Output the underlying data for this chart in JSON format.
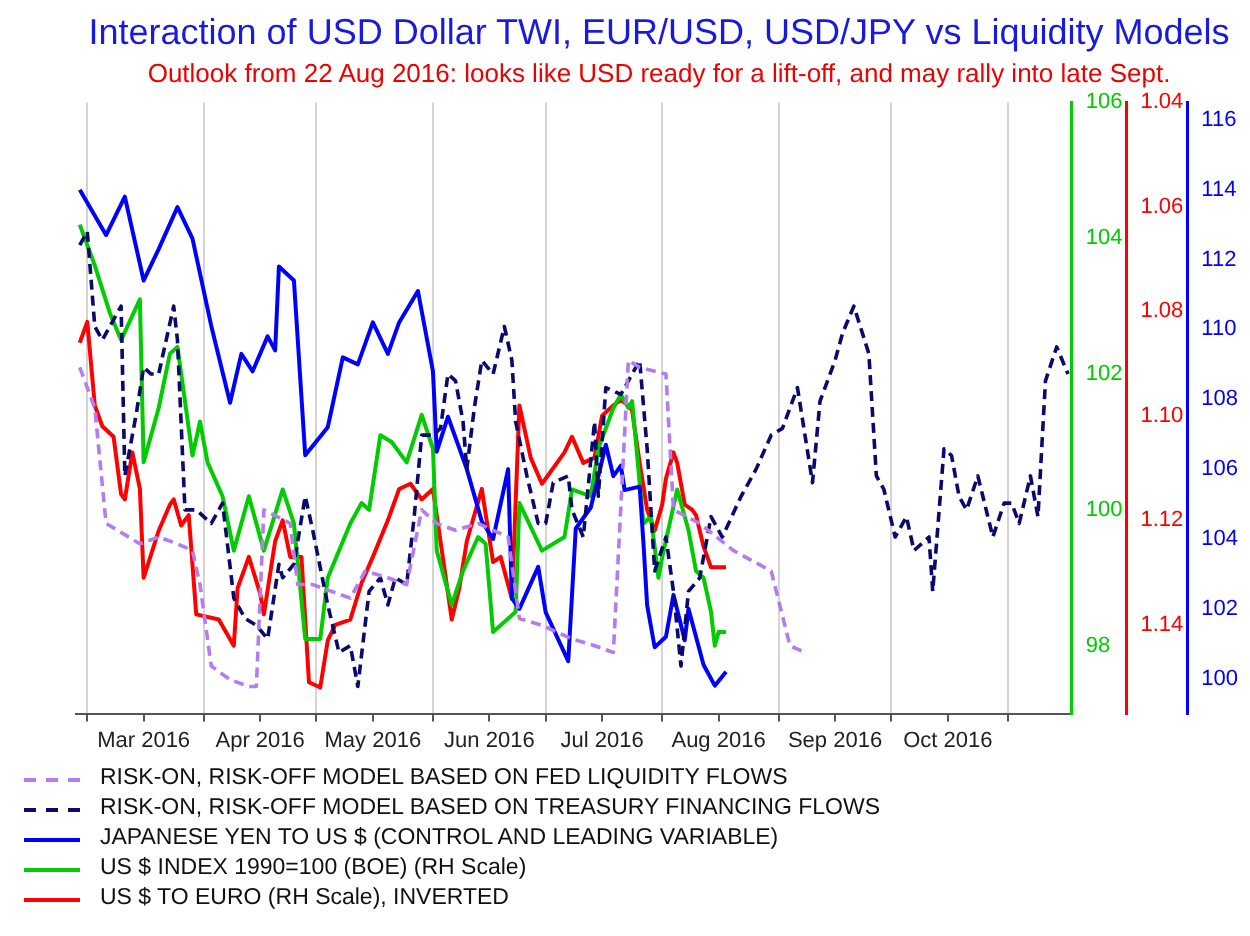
{
  "chart_data": {
    "type": "line",
    "title": "Interaction of USD Dollar TWI, EUR/USD, USD/JPY vs Liquidity Models",
    "subtitle": "Outlook from 22 Aug 2016: looks like USD ready for a lift-off, and may rally into late Sept.",
    "xlim": [
      "2016-02-27",
      "2016-11-18"
    ],
    "xticks": [
      {
        "value": "2016-03-01",
        "label": null
      },
      {
        "value": "2016-03-16",
        "label": "Mar 2016"
      },
      {
        "value": "2016-04-01",
        "label": null
      },
      {
        "value": "2016-04-16",
        "label": "Apr 2016"
      },
      {
        "value": "2016-05-01",
        "label": null
      },
      {
        "value": "2016-05-16",
        "label": "May 2016"
      },
      {
        "value": "2016-06-01",
        "label": null
      },
      {
        "value": "2016-06-16",
        "label": "Jun 2016"
      },
      {
        "value": "2016-07-01",
        "label": null
      },
      {
        "value": "2016-07-16",
        "label": "Jul 2016"
      },
      {
        "value": "2016-08-01",
        "label": null
      },
      {
        "value": "2016-08-16",
        "label": "Aug 2016"
      },
      {
        "value": "2016-09-01",
        "label": null
      },
      {
        "value": "2016-09-16",
        "label": "Sep 2016"
      },
      {
        "value": "2016-10-01",
        "label": null
      },
      {
        "value": "2016-10-16",
        "label": "Oct 2016"
      },
      {
        "value": "2016-11-01",
        "label": null
      }
    ],
    "ylim": [
      97,
      106
    ],
    "yticks": [
      98,
      100,
      102,
      104,
      106
    ],
    "y2lim": [
      1.157,
      1.04
    ],
    "y2ticks": [
      1.04,
      1.06,
      1.08,
      {
        "value": 1.1,
        "label": "1.10"
      },
      1.12,
      1.14
    ],
    "y3lim": [
      99,
      116.5
    ],
    "y3ticks": [
      100,
      102,
      104,
      106,
      108,
      110,
      112,
      114,
      116
    ],
    "grid": "x",
    "legend": "bottom left",
    "marker": "none",
    "series": [
      {
        "name": "RISK-ON, RISK-OFF MODEL BASED ON FED LIQUIDITY FLOWS",
        "color": "#b57cf0",
        "line_style": "dashed",
        "x": [
          "2016-02-28",
          "2016-03-03",
          "2016-03-06",
          "2016-03-15",
          "2016-03-20",
          "2016-03-25",
          "2016-03-29",
          "2016-03-31",
          "2016-04-03",
          "2016-04-08",
          "2016-04-13",
          "2016-04-15",
          "2016-04-17",
          "2016-04-24",
          "2016-04-26",
          "2016-04-30",
          "2016-05-05",
          "2016-05-10",
          "2016-05-14",
          "2016-05-20",
          "2016-05-25",
          "2016-05-29",
          "2016-06-02",
          "2016-06-07",
          "2016-06-13",
          "2016-06-21",
          "2016-06-24",
          "2016-06-30",
          "2016-07-08",
          "2016-07-14",
          "2016-07-19",
          "2016-07-23",
          "2016-07-26",
          "2016-08-02",
          "2016-08-04",
          "2016-08-11",
          "2016-08-20",
          "2016-08-30",
          "2016-09-04",
          "2016-09-08"
        ],
        "values": [
          102.1,
          101.5,
          99.8,
          99.5,
          99.6,
          99.5,
          99.4,
          98.9,
          97.7,
          97.5,
          97.4,
          97.4,
          100.0,
          99.8,
          98.9,
          98.9,
          98.8,
          98.7,
          99.1,
          99.0,
          98.9,
          100.0,
          99.8,
          99.7,
          99.8,
          99.6,
          98.4,
          98.3,
          98.1,
          98.0,
          97.9,
          102.2,
          102.1,
          102.0,
          100.0,
          99.8,
          99.4,
          99.1,
          98.0,
          97.9
        ]
      },
      {
        "name": "RISK-ON, RISK-OFF MODEL BASED ON TREASURY FINANCING FLOWS",
        "color": "#0a0a6e",
        "line_style": "dashed",
        "x": [
          "2016-02-28",
          "2016-03-01",
          "2016-03-03",
          "2016-03-05",
          "2016-03-07",
          "2016-03-10",
          "2016-03-11",
          "2016-03-14",
          "2016-03-16",
          "2016-03-18",
          "2016-03-20",
          "2016-03-24",
          "2016-03-25",
          "2016-03-27",
          "2016-03-30",
          "2016-04-03",
          "2016-04-06",
          "2016-04-09",
          "2016-04-12",
          "2016-04-15",
          "2016-04-18",
          "2016-04-21",
          "2016-04-22",
          "2016-04-25",
          "2016-04-28",
          "2016-04-30",
          "2016-05-04",
          "2016-05-07",
          "2016-05-10",
          "2016-05-12",
          "2016-05-15",
          "2016-05-18",
          "2016-05-20",
          "2016-05-22",
          "2016-05-25",
          "2016-05-27",
          "2016-05-29",
          "2016-06-01",
          "2016-06-03",
          "2016-06-05",
          "2016-06-07",
          "2016-06-09",
          "2016-06-10",
          "2016-06-12",
          "2016-06-14",
          "2016-06-17",
          "2016-06-20",
          "2016-06-22",
          "2016-06-23",
          "2016-06-26",
          "2016-06-29",
          "2016-07-01",
          "2016-07-03",
          "2016-07-07",
          "2016-07-08",
          "2016-07-11",
          "2016-07-14",
          "2016-07-15",
          "2016-07-17",
          "2016-07-21",
          "2016-07-26",
          "2016-07-28",
          "2016-07-30",
          "2016-08-02",
          "2016-08-04",
          "2016-08-06",
          "2016-08-08",
          "2016-08-11",
          "2016-08-14",
          "2016-08-17",
          "2016-08-22",
          "2016-08-26",
          "2016-08-30",
          "2016-09-02",
          "2016-09-06",
          "2016-09-10",
          "2016-09-12",
          "2016-09-16",
          "2016-09-18",
          "2016-09-21",
          "2016-09-25",
          "2016-09-27",
          "2016-09-29",
          "2016-10-02",
          "2016-10-05",
          "2016-10-07",
          "2016-10-11",
          "2016-10-12",
          "2016-10-15",
          "2016-10-17",
          "2016-10-19",
          "2016-10-21",
          "2016-10-24",
          "2016-10-28",
          "2016-10-31",
          "2016-11-02",
          "2016-11-04",
          "2016-11-07",
          "2016-11-09",
          "2016-11-11",
          "2016-11-14",
          "2016-11-17"
        ],
        "values": [
          103.9,
          104.1,
          102.7,
          102.5,
          102.7,
          103.0,
          100.5,
          101.4,
          102.1,
          102.0,
          102.0,
          103.0,
          102.5,
          100.0,
          100.0,
          99.8,
          100.1,
          98.7,
          98.4,
          98.3,
          98.1,
          99.2,
          99.0,
          99.2,
          100.2,
          99.7,
          98.6,
          97.9,
          98.0,
          97.4,
          98.8,
          99.0,
          98.6,
          99.0,
          98.9,
          99.9,
          101.1,
          101.1,
          101.2,
          102.0,
          101.9,
          101.3,
          100.6,
          101.5,
          102.2,
          102.0,
          102.7,
          102.2,
          101.3,
          100.5,
          99.8,
          99.8,
          100.4,
          100.5,
          100.0,
          99.6,
          101.3,
          100.2,
          101.8,
          101.7,
          102.2,
          100.9,
          99.1,
          99.6,
          98.8,
          97.7,
          98.8,
          99.0,
          99.9,
          99.6,
          100.2,
          100.6,
          101.1,
          101.2,
          101.8,
          100.4,
          101.6,
          102.2,
          102.6,
          103.0,
          102.3,
          100.5,
          100.3,
          99.6,
          99.9,
          99.4,
          99.6,
          98.8,
          100.9,
          100.8,
          100.2,
          100.0,
          100.5,
          99.6,
          100.1,
          100.1,
          99.8,
          100.5,
          99.9,
          101.9,
          102.4,
          102.0
        ]
      },
      {
        "name": "JAPANESE YEN TO US $ (CONTROL AND LEADING VARIABLE)",
        "color": "#0000ff",
        "line_style": "solid",
        "axis": "y3",
        "x": [
          "2016-02-28",
          "2016-03-06",
          "2016-03-11",
          "2016-03-16",
          "2016-03-20",
          "2016-03-25",
          "2016-03-29",
          "2016-04-03",
          "2016-04-08",
          "2016-04-11",
          "2016-04-14",
          "2016-04-18",
          "2016-04-20",
          "2016-04-21",
          "2016-04-25",
          "2016-04-28",
          "2016-05-04",
          "2016-05-08",
          "2016-05-12",
          "2016-05-16",
          "2016-05-20",
          "2016-05-23",
          "2016-05-28",
          "2016-06-01",
          "2016-06-02",
          "2016-06-05",
          "2016-06-10",
          "2016-06-14",
          "2016-06-17",
          "2016-06-21",
          "2016-06-22",
          "2016-06-24",
          "2016-06-29",
          "2016-07-01",
          "2016-07-07",
          "2016-07-09",
          "2016-07-13",
          "2016-07-17",
          "2016-07-19",
          "2016-07-21",
          "2016-07-22",
          "2016-07-26",
          "2016-07-27",
          "2016-07-28",
          "2016-07-30",
          "2016-08-02",
          "2016-08-04",
          "2016-08-07",
          "2016-08-08",
          "2016-08-12",
          "2016-08-15",
          "2016-08-18"
        ],
        "values": [
          114.0,
          112.7,
          113.8,
          111.4,
          112.3,
          113.5,
          112.6,
          110.1,
          107.9,
          109.3,
          108.8,
          109.8,
          109.4,
          111.8,
          111.4,
          106.4,
          107.2,
          109.2,
          109.0,
          110.2,
          109.3,
          110.2,
          111.1,
          108.8,
          106.5,
          107.5,
          106.0,
          104.5,
          104.0,
          106.0,
          102.3,
          102.0,
          103.2,
          101.9,
          100.5,
          104.3,
          104.9,
          106.7,
          105.8,
          106.1,
          105.4,
          105.5,
          103.9,
          102.1,
          100.9,
          101.2,
          102.4,
          101.1,
          102.0,
          100.4,
          99.8,
          100.2
        ]
      },
      {
        "name": "US $ INDEX 1990=100 (BOE) (RH Scale)",
        "color": "#00cc00",
        "line_style": "solid",
        "x": [
          "2016-02-28",
          "2016-03-03",
          "2016-03-07",
          "2016-03-10",
          "2016-03-15",
          "2016-03-16",
          "2016-03-20",
          "2016-03-23",
          "2016-03-25",
          "2016-03-29",
          "2016-03-31",
          "2016-04-02",
          "2016-04-06",
          "2016-04-09",
          "2016-04-13",
          "2016-04-17",
          "2016-04-22",
          "2016-04-25",
          "2016-04-28",
          "2016-05-02",
          "2016-05-04",
          "2016-05-10",
          "2016-05-13",
          "2016-05-15",
          "2016-05-18",
          "2016-05-21",
          "2016-05-25",
          "2016-05-29",
          "2016-06-01",
          "2016-06-02",
          "2016-06-06",
          "2016-06-09",
          "2016-06-13",
          "2016-06-15",
          "2016-06-17",
          "2016-06-23",
          "2016-06-24",
          "2016-06-30",
          "2016-07-06",
          "2016-07-08",
          "2016-07-13",
          "2016-07-15",
          "2016-07-19",
          "2016-07-21",
          "2016-07-23",
          "2016-07-24",
          "2016-07-27",
          "2016-07-29",
          "2016-07-31",
          "2016-08-01",
          "2016-08-05",
          "2016-08-08",
          "2016-08-10",
          "2016-08-12",
          "2016-08-14",
          "2016-08-15",
          "2016-08-16",
          "2016-08-18"
        ],
        "values": [
          104.2,
          103.6,
          102.9,
          102.5,
          103.1,
          100.7,
          101.5,
          102.3,
          102.4,
          100.8,
          101.3,
          100.7,
          100.2,
          99.4,
          100.2,
          99.4,
          100.3,
          99.8,
          98.1,
          98.1,
          99.0,
          99.8,
          100.1,
          100.0,
          101.1,
          101.0,
          100.7,
          101.4,
          100.9,
          99.4,
          98.6,
          99.1,
          99.6,
          99.5,
          98.2,
          98.5,
          100.1,
          99.4,
          99.6,
          100.3,
          100.2,
          100.9,
          101.5,
          101.7,
          101.5,
          101.6,
          99.8,
          99.9,
          99.0,
          99.3,
          100.3,
          99.7,
          99.1,
          99.0,
          98.5,
          98.0,
          98.2,
          98.2
        ]
      },
      {
        "name": "US $ TO EURO (RH Scale), INVERTED",
        "color": "#ff0000",
        "line_style": "solid",
        "axis": "y2",
        "x": [
          "2016-02-28",
          "2016-03-01",
          "2016-03-03",
          "2016-03-05",
          "2016-03-08",
          "2016-03-10",
          "2016-03-11",
          "2016-03-13",
          "2016-03-15",
          "2016-03-16",
          "2016-03-20",
          "2016-03-23",
          "2016-03-24",
          "2016-03-26",
          "2016-03-28",
          "2016-03-30",
          "2016-04-05",
          "2016-04-09",
          "2016-04-10",
          "2016-04-13",
          "2016-04-16",
          "2016-04-17",
          "2016-04-20",
          "2016-04-22",
          "2016-04-24",
          "2016-04-27",
          "2016-04-29",
          "2016-05-02",
          "2016-05-04",
          "2016-05-06",
          "2016-05-10",
          "2016-05-13",
          "2016-05-16",
          "2016-05-20",
          "2016-05-23",
          "2016-05-26",
          "2016-05-29",
          "2016-06-01",
          "2016-06-04",
          "2016-06-06",
          "2016-06-08",
          "2016-06-10",
          "2016-06-14",
          "2016-06-17",
          "2016-06-19",
          "2016-06-22",
          "2016-06-24",
          "2016-06-27",
          "2016-06-30",
          "2016-07-03",
          "2016-07-06",
          "2016-07-08",
          "2016-07-11",
          "2016-07-14",
          "2016-07-16",
          "2016-07-19",
          "2016-07-21",
          "2016-07-23",
          "2016-07-24",
          "2016-07-26",
          "2016-07-28",
          "2016-07-30",
          "2016-08-01",
          "2016-08-02",
          "2016-08-04",
          "2016-08-05",
          "2016-08-07",
          "2016-08-09",
          "2016-08-10",
          "2016-08-12",
          "2016-08-14",
          "2016-08-18"
        ],
        "values": [
          1.086,
          1.082,
          1.098,
          1.102,
          1.104,
          1.115,
          1.116,
          1.107,
          1.114,
          1.131,
          1.122,
          1.117,
          1.116,
          1.121,
          1.119,
          1.138,
          1.139,
          1.144,
          1.133,
          1.127,
          1.134,
          1.138,
          1.124,
          1.12,
          1.127,
          1.127,
          1.151,
          1.152,
          1.143,
          1.14,
          1.139,
          1.132,
          1.127,
          1.12,
          1.114,
          1.113,
          1.116,
          1.114,
          1.129,
          1.139,
          1.133,
          1.124,
          1.114,
          1.128,
          1.127,
          1.135,
          1.098,
          1.108,
          1.113,
          1.11,
          1.107,
          1.104,
          1.109,
          1.108,
          1.1,
          1.098,
          1.097,
          1.098,
          1.099,
          1.109,
          1.118,
          1.122,
          1.117,
          1.112,
          1.107,
          1.109,
          1.117,
          1.118,
          1.119,
          1.125,
          1.129,
          1.129
        ]
      }
    ]
  }
}
